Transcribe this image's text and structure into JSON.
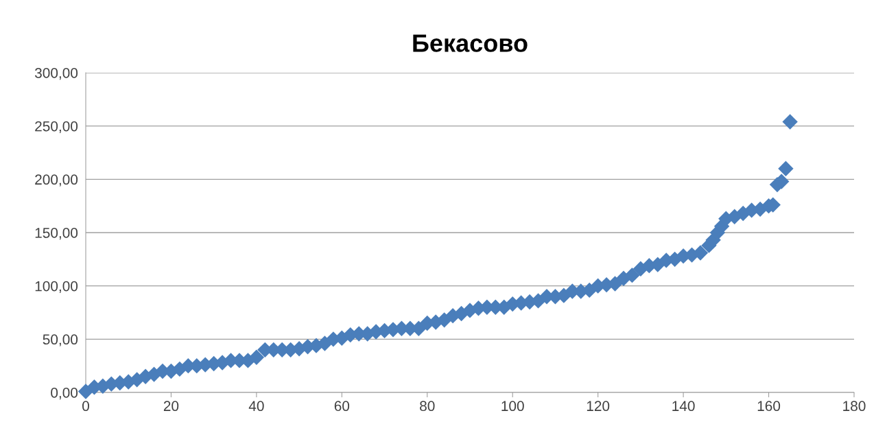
{
  "chart_data": {
    "type": "scatter",
    "title": "Бекасово",
    "marker": "diamond",
    "grid": "y",
    "xlim": [
      0,
      180
    ],
    "xticks": [
      0,
      20,
      40,
      60,
      80,
      100,
      120,
      140,
      160,
      180
    ],
    "ylim": [
      0,
      300
    ],
    "yticks": [
      {
        "value": 0,
        "label": "0,00"
      },
      {
        "value": 50,
        "label": "50,00"
      },
      {
        "value": 100,
        "label": "100,00"
      },
      {
        "value": 150,
        "label": "150,00"
      },
      {
        "value": 200,
        "label": "200,00"
      },
      {
        "value": 250,
        "label": "250,00"
      },
      {
        "value": 300,
        "label": "300,00"
      }
    ],
    "series": [
      {
        "color": "#4a7ebb",
        "x": [
          0,
          2,
          4,
          6,
          8,
          10,
          12,
          14,
          16,
          18,
          20,
          22,
          24,
          26,
          28,
          30,
          32,
          34,
          36,
          38,
          40,
          42,
          44,
          46,
          48,
          50,
          52,
          54,
          56,
          58,
          60,
          62,
          64,
          66,
          68,
          70,
          72,
          74,
          76,
          78,
          80,
          82,
          84,
          86,
          88,
          90,
          92,
          94,
          96,
          98,
          100,
          102,
          104,
          106,
          108,
          110,
          112,
          114,
          116,
          118,
          120,
          122,
          124,
          126,
          128,
          130,
          132,
          134,
          136,
          138,
          140,
          142,
          144,
          146,
          147,
          148,
          149,
          150,
          152,
          154,
          156,
          158,
          160,
          161,
          162,
          163,
          164,
          165
        ],
        "values": [
          1,
          5,
          6,
          8,
          9,
          10,
          12,
          15,
          17,
          20,
          20,
          22,
          25,
          25,
          26,
          27,
          28,
          30,
          30,
          30,
          33,
          40,
          40,
          40,
          40,
          41,
          43,
          44,
          46,
          50,
          51,
          54,
          55,
          55,
          57,
          58,
          59,
          60,
          60,
          60,
          65,
          66,
          68,
          72,
          74,
          77,
          79,
          80,
          80,
          80,
          83,
          84,
          85,
          86,
          90,
          90,
          91,
          95,
          95,
          96,
          100,
          101,
          102,
          107,
          110,
          116,
          119,
          120,
          124,
          125,
          128,
          129,
          131,
          138,
          143,
          150,
          156,
          163,
          165,
          168,
          171,
          172,
          175,
          176,
          195,
          198,
          210,
          254
        ]
      }
    ]
  }
}
